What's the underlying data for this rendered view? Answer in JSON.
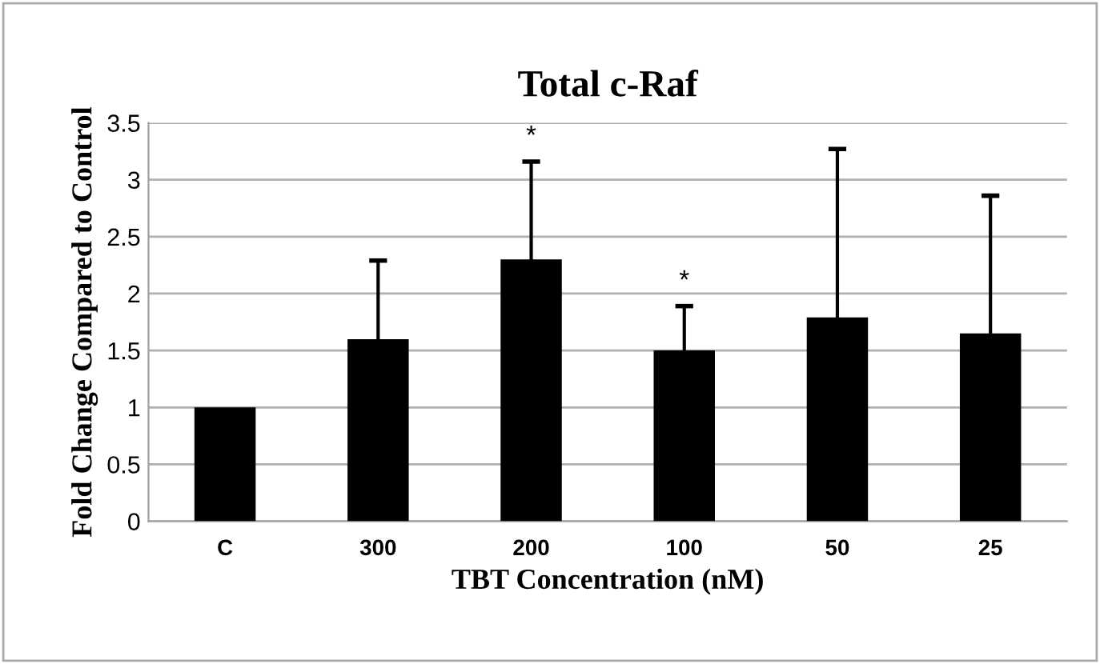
{
  "chart_data": {
    "type": "bar",
    "title": "Total c-Raf",
    "xlabel": "TBT Concentration (nM)",
    "ylabel": "Fold Change Compared to Control",
    "categories": [
      "C",
      "300",
      "200",
      "100",
      "50",
      "25"
    ],
    "values": [
      1.0,
      1.6,
      2.3,
      1.5,
      1.79,
      1.65
    ],
    "errors": [
      null,
      0.69,
      0.86,
      0.39,
      1.48,
      1.21
    ],
    "color": "#000000",
    "ylim": [
      0,
      3.5
    ],
    "yticks": [
      0,
      0.5,
      1,
      1.5,
      2,
      2.5,
      3,
      3.5
    ],
    "grid": "y",
    "annotations": [
      {
        "text": "*",
        "x": "200",
        "y": 3.16
      },
      {
        "text": "*",
        "x": "100",
        "y": 1.89
      }
    ]
  }
}
